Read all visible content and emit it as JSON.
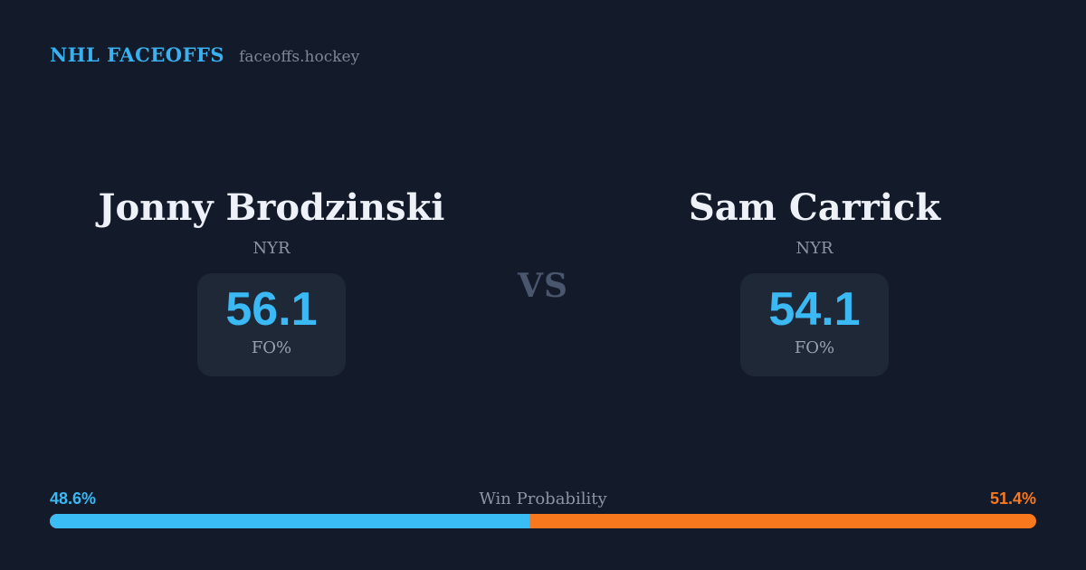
{
  "header": {
    "brand": "NHL FACEOFFS",
    "site": "faceoffs.hockey"
  },
  "vs_label": "VS",
  "players": [
    {
      "name": "Jonny Brodzinski",
      "team": "NYR",
      "stat_value": "56.1",
      "stat_label": "FO%",
      "win_probability_label": "48.6%"
    },
    {
      "name": "Sam Carrick",
      "team": "NYR",
      "stat_value": "54.1",
      "stat_label": "FO%",
      "win_probability_label": "51.4%"
    }
  ],
  "win_probability": {
    "title": "Win Probability",
    "left_pct": 48.6,
    "right_pct": 51.4
  },
  "colors": {
    "background": "#131b2b",
    "card_background": "#1e2836",
    "accent_blue": "#3ab9f5",
    "accent_orange": "#f8791d",
    "muted_text": "#8c95a4",
    "vs_text": "#49566d",
    "name_text": "#eef2f8"
  },
  "chart_data": {
    "type": "bar",
    "title": "Win Probability",
    "categories": [
      "Jonny Brodzinski",
      "Sam Carrick"
    ],
    "series": [
      {
        "name": "Win Probability %",
        "values": [
          48.6,
          51.4
        ]
      },
      {
        "name": "FO%",
        "values": [
          56.1,
          54.1
        ]
      }
    ],
    "xlim": [
      0,
      100
    ],
    "legend": "none",
    "orientation": "horizontal-stacked"
  }
}
